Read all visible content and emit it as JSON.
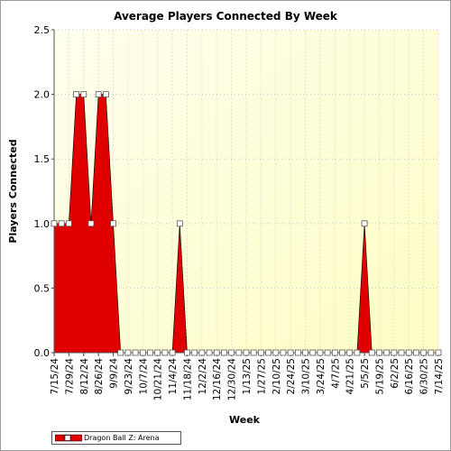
{
  "chart_data": {
    "type": "area",
    "title": "Average Players Connected By Week",
    "xlabel": "Week",
    "ylabel": "Players Connected",
    "ylim": [
      0,
      2.5
    ],
    "yticks": [
      "0.0",
      "0.5",
      "1.0",
      "1.5",
      "2.0",
      "2.5"
    ],
    "x_tick_labels": [
      "7/15/24",
      "7/29/24",
      "8/12/24",
      "8/26/24",
      "9/9/24",
      "9/23/24",
      "10/7/24",
      "10/21/24",
      "11/4/24",
      "11/18/24",
      "12/2/24",
      "12/16/24",
      "12/30/24",
      "1/13/25",
      "1/27/25",
      "2/10/25",
      "2/24/25",
      "3/10/25",
      "3/24/25",
      "4/7/25",
      "4/21/25",
      "5/5/25",
      "5/19/25",
      "6/2/25",
      "6/16/25",
      "6/30/25",
      "7/14/25"
    ],
    "grid": true,
    "legend_position": "bottom-left",
    "background_gradient": [
      "#ffffee",
      "#fdfdc4"
    ],
    "series": [
      {
        "name": "Dragon Ball Z: Arena",
        "color": "#e00000",
        "weeks": [
          "7/15/24",
          "7/22/24",
          "7/29/24",
          "8/5/24",
          "8/12/24",
          "8/19/24",
          "8/26/24",
          "9/2/24",
          "9/9/24",
          "9/16/24",
          "9/23/24",
          "9/30/24",
          "10/7/24",
          "10/14/24",
          "10/21/24",
          "10/28/24",
          "11/4/24",
          "11/11/24",
          "11/18/24",
          "11/25/24",
          "12/2/24",
          "12/9/24",
          "12/16/24",
          "12/23/24",
          "12/30/24",
          "1/6/25",
          "1/13/25",
          "1/20/25",
          "1/27/25",
          "2/3/25",
          "2/10/25",
          "2/17/25",
          "2/24/25",
          "3/3/25",
          "3/10/25",
          "3/17/25",
          "3/24/25",
          "3/31/25",
          "4/7/25",
          "4/14/25",
          "4/21/25",
          "4/28/25",
          "5/5/25",
          "5/12/25",
          "5/19/25",
          "5/26/25",
          "6/2/25",
          "6/9/25",
          "6/16/25",
          "6/23/25",
          "6/30/25",
          "7/7/25",
          "7/14/25"
        ],
        "values": [
          1,
          1,
          1,
          2,
          2,
          1,
          2,
          2,
          1,
          0,
          0,
          0,
          0,
          0,
          0,
          0,
          0,
          1,
          0,
          0,
          0,
          0,
          0,
          0,
          0,
          0,
          0,
          0,
          0,
          0,
          0,
          0,
          0,
          0,
          0,
          0,
          0,
          0,
          0,
          0,
          0,
          0,
          1,
          0,
          0,
          0,
          0,
          0,
          0,
          0,
          0,
          0,
          0
        ]
      }
    ]
  }
}
